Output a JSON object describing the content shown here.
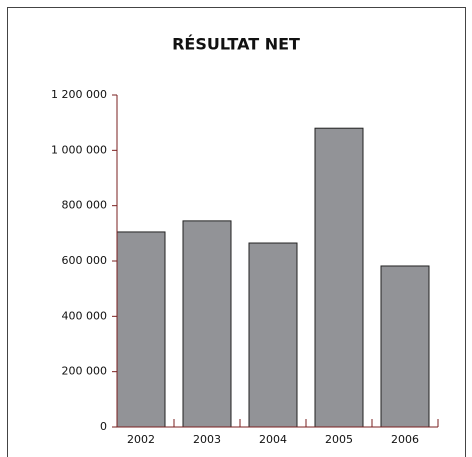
{
  "chart_data": {
    "type": "bar",
    "title": "RÉSULTAT NET",
    "categories": [
      "2002",
      "2003",
      "2004",
      "2005",
      "2006"
    ],
    "values": [
      705000,
      745000,
      665000,
      1080000,
      582000
    ],
    "color": "#929397",
    "ylim": [
      0,
      1200000
    ],
    "yticks": [
      0,
      {
        "value": 200000,
        "label": "200 000"
      },
      {
        "value": 400000,
        "label": "400 000"
      },
      {
        "value": 600000,
        "label": "600 000"
      },
      {
        "value": 800000,
        "label": "800 000"
      },
      {
        "value": 1000000,
        "label": "1 000 000"
      },
      {
        "value": 1200000,
        "label": "1 200 000"
      }
    ],
    "grid": false
  }
}
